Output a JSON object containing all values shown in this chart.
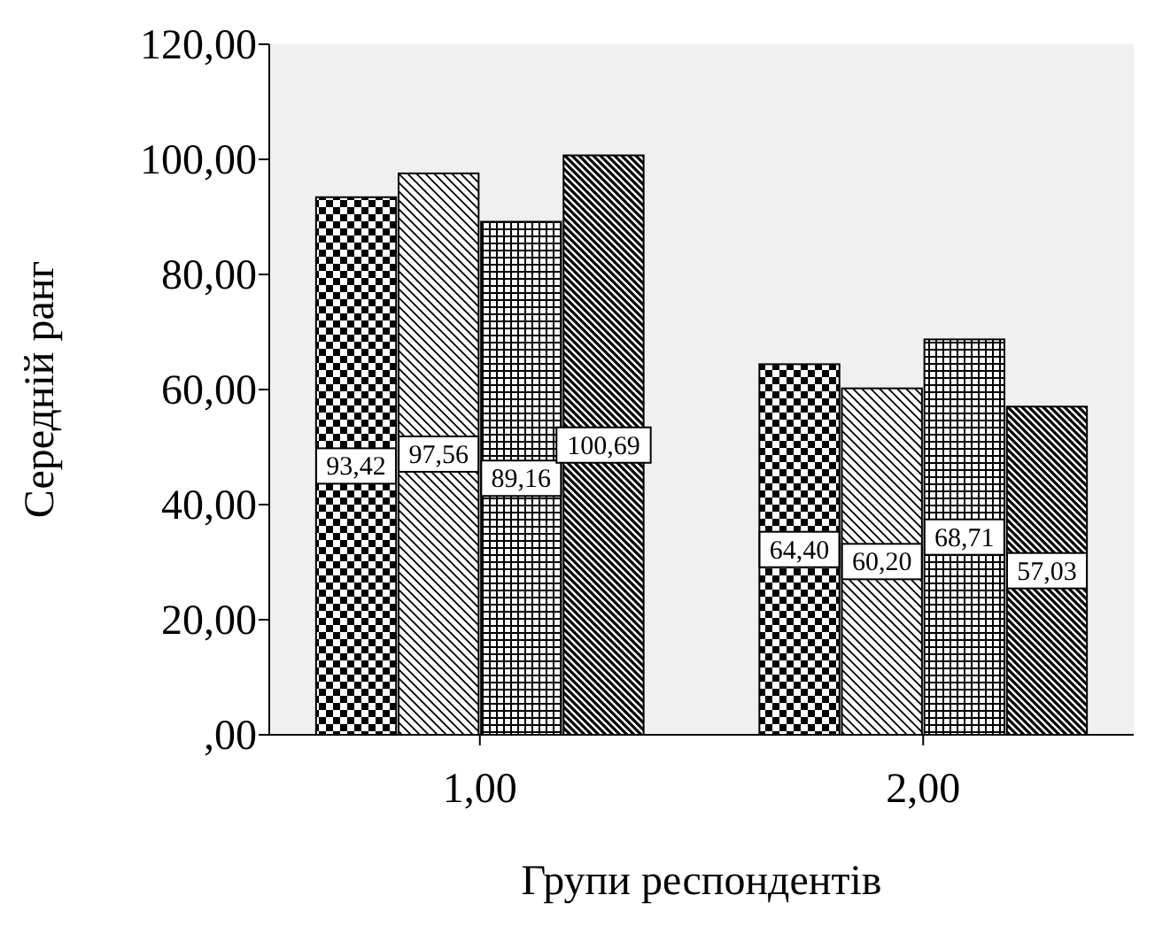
{
  "chart_data": {
    "type": "bar",
    "xlabel": "Групи респондентів",
    "ylabel": "Середній ранг",
    "categories": [
      "1,00",
      "2,00"
    ],
    "series": [
      {
        "color": "#000000",
        "values": [
          93.42,
          64.4
        ],
        "value_labels": [
          "93,42",
          "64,40"
        ]
      },
      {
        "color": "#000000",
        "values": [
          97.56,
          60.2
        ],
        "value_labels": [
          "97,56",
          "60,20"
        ]
      },
      {
        "color": "#000000",
        "values": [
          89.16,
          68.71
        ],
        "value_labels": [
          "89,16",
          "68,71"
        ]
      },
      {
        "color": "#000000",
        "values": [
          100.69,
          57.03
        ],
        "value_labels": [
          "100,69",
          "57,03"
        ]
      }
    ],
    "ylim": [
      0,
      120
    ],
    "yticks": [
      {
        "value": 0,
        "label": ",00"
      },
      {
        "value": 20,
        "label": "20,00"
      },
      {
        "value": 40,
        "label": "40,00"
      },
      {
        "value": 60,
        "label": "60,00"
      },
      {
        "value": 80,
        "label": "80,00"
      },
      {
        "value": 100,
        "label": "100,00"
      },
      {
        "value": 120,
        "label": "120,00"
      }
    ],
    "grid": false
  }
}
